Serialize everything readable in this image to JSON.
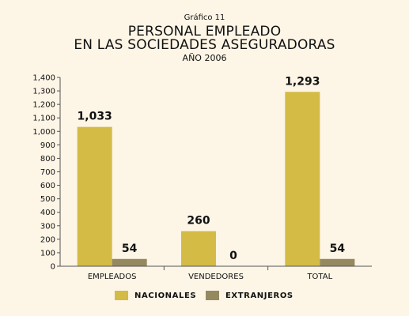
{
  "chart_data": {
    "type": "bar",
    "kicker": "Gráfico 11",
    "title_line1": "PERSONAL EMPLEADO",
    "title_line2": "EN LAS SOCIEDADES ASEGURADORAS",
    "subtitle": "AÑO 2006",
    "categories": [
      "EMPLEADOS",
      "VENDEDORES",
      "TOTAL"
    ],
    "series": [
      {
        "name": "NACIONALES",
        "values": [
          1033,
          260,
          1293
        ],
        "labels": [
          "1,033",
          "260",
          "1,293"
        ],
        "color": "#d4bb45"
      },
      {
        "name": "EXTRANJEROS",
        "values": [
          54,
          0,
          54
        ],
        "labels": [
          "54",
          "0",
          "54"
        ],
        "color": "#958960"
      }
    ],
    "ylim": [
      0,
      1400
    ],
    "yticks": [
      "0",
      "100",
      "200",
      "300",
      "400",
      "500",
      "600",
      "700",
      "800",
      "900",
      "1,000",
      "1,100",
      "1,200",
      "1,300",
      "1,400"
    ],
    "legend_position": "bottom",
    "grid": false
  }
}
